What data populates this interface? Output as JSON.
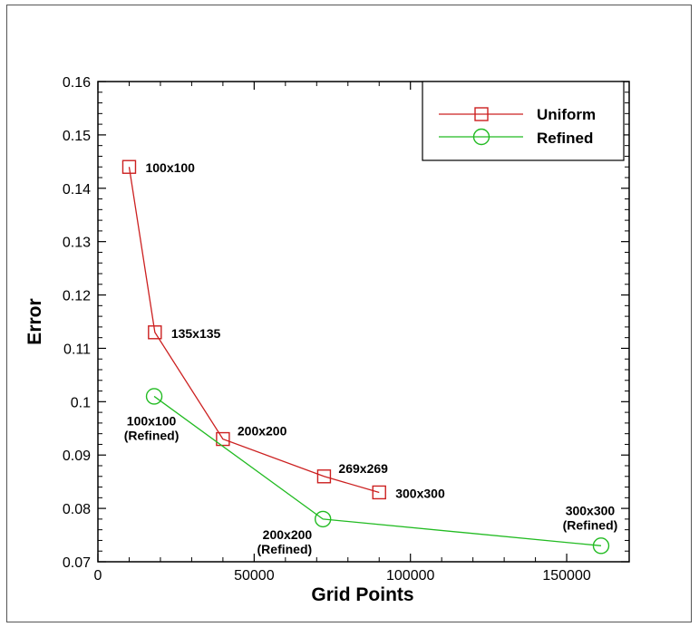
{
  "chart_data": {
    "type": "line",
    "xlabel": "Grid Points",
    "ylabel": "Error",
    "xlim": [
      0,
      170000
    ],
    "ylim": [
      0.07,
      0.16
    ],
    "x_ticks": [
      0,
      50000,
      100000,
      150000
    ],
    "x_tick_labels": [
      "0",
      "50000",
      "100000",
      "150000"
    ],
    "y_ticks": [
      0.07,
      0.08,
      0.09,
      0.1,
      0.11,
      0.12,
      0.13,
      0.14,
      0.15,
      0.16
    ],
    "y_tick_labels": [
      "0.07",
      "0.08",
      "0.09",
      "0.1",
      "0.11",
      "0.12",
      "0.13",
      "0.14",
      "0.15",
      "0.16"
    ],
    "grid": false,
    "legend_position": "top-right",
    "series": [
      {
        "name": "Uniform",
        "color": "#cc2020",
        "marker": "square",
        "x": [
          10000,
          18225,
          40000,
          72361,
          90000
        ],
        "y": [
          0.144,
          0.113,
          0.093,
          0.086,
          0.083
        ]
      },
      {
        "name": "Refined",
        "color": "#22bb22",
        "marker": "circle",
        "x": [
          18000,
          72000,
          161000
        ],
        "y": [
          0.101,
          0.078,
          0.073
        ]
      }
    ],
    "annotations": [
      {
        "lines": [
          "100x100"
        ],
        "x": 10000,
        "y": 0.144,
        "anchor": "right"
      },
      {
        "lines": [
          "135x135"
        ],
        "x": 18225,
        "y": 0.113,
        "anchor": "right"
      },
      {
        "lines": [
          "200x200"
        ],
        "x": 40000,
        "y": 0.093,
        "anchor": "upper-right"
      },
      {
        "lines": [
          "269x269"
        ],
        "x": 72361,
        "y": 0.086,
        "anchor": "upper-right"
      },
      {
        "lines": [
          "300x300"
        ],
        "x": 90000,
        "y": 0.083,
        "anchor": "right"
      },
      {
        "lines": [
          "100x100",
          "(Refined)"
        ],
        "x": 18000,
        "y": 0.101,
        "anchor": "below"
      },
      {
        "lines": [
          "200x200",
          "(Refined)"
        ],
        "x": 72000,
        "y": 0.078,
        "anchor": "left"
      },
      {
        "lines": [
          "300x300",
          "(Refined)"
        ],
        "x": 161000,
        "y": 0.073,
        "anchor": "above"
      }
    ]
  }
}
